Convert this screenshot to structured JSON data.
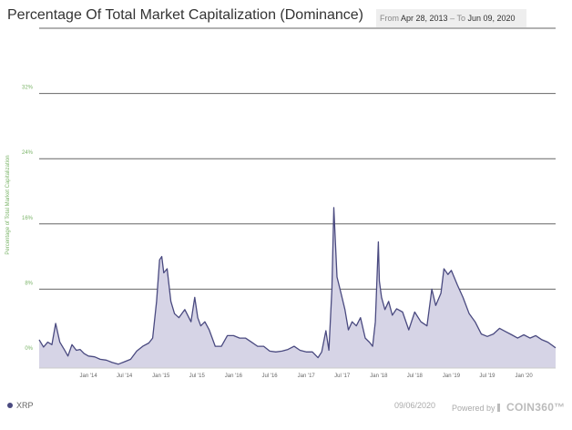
{
  "header": {
    "title": "Percentage Of Total Market Capitalization (Dominance)",
    "range_from_label": "From",
    "range_from": "Apr 28, 2013",
    "range_sep": "–",
    "range_to_label": "To",
    "range_to": "Jun 09, 2020"
  },
  "footer": {
    "legend": "XRP",
    "date": "09/06/2020",
    "powered_by": "Powered by",
    "brand": "COIN360",
    "brand_tm": "™"
  },
  "colors": {
    "line": "#4a4a80",
    "fill": "#d6d4e6",
    "grid": "#666666",
    "axis_label": "#7cb56a",
    "tick_label": "#666666"
  },
  "chart_data": {
    "type": "area",
    "title": "Percentage Of Total Market Capitalization (Dominance)",
    "ylabel": "Percentage of Total Market Capitalization",
    "ylim": [
      0,
      40
    ],
    "yticks": [
      0,
      8,
      16,
      24,
      32
    ],
    "ytick_labels": [
      "0%",
      "8%",
      "16%",
      "24%",
      "32%"
    ],
    "xlim": [
      "2013-04-28",
      "2020-06-09"
    ],
    "xticks": [
      "2014-01-01",
      "2014-07-01",
      "2015-01-01",
      "2015-07-01",
      "2016-01-01",
      "2016-07-01",
      "2017-01-01",
      "2017-07-01",
      "2018-01-01",
      "2018-07-01",
      "2019-01-01",
      "2019-07-01",
      "2020-01-01"
    ],
    "xtick_labels": [
      "Jan '14",
      "Jul '14",
      "Jan '15",
      "Jul '15",
      "Jan '16",
      "Jul '16",
      "Jan '17",
      "Jul '17",
      "Jan '18",
      "Jul '18",
      "Jan '19",
      "Jul '19",
      "Jan '20"
    ],
    "series": [
      {
        "name": "XRP",
        "x": [
          "2013-04-28",
          "2013-05-20",
          "2013-06-10",
          "2013-07-01",
          "2013-07-20",
          "2013-08-10",
          "2013-09-01",
          "2013-09-20",
          "2013-10-10",
          "2013-11-01",
          "2013-11-20",
          "2013-12-10",
          "2014-01-01",
          "2014-02-01",
          "2014-03-01",
          "2014-04-01",
          "2014-05-01",
          "2014-06-01",
          "2014-07-01",
          "2014-08-01",
          "2014-09-01",
          "2014-10-01",
          "2014-11-01",
          "2014-11-20",
          "2014-12-10",
          "2014-12-25",
          "2015-01-05",
          "2015-01-15",
          "2015-02-01",
          "2015-02-20",
          "2015-03-10",
          "2015-04-01",
          "2015-05-01",
          "2015-06-01",
          "2015-06-20",
          "2015-07-05",
          "2015-07-20",
          "2015-08-10",
          "2015-09-01",
          "2015-10-01",
          "2015-11-01",
          "2015-12-01",
          "2016-01-01",
          "2016-02-01",
          "2016-03-01",
          "2016-04-01",
          "2016-05-01",
          "2016-06-01",
          "2016-07-01",
          "2016-08-01",
          "2016-09-01",
          "2016-10-01",
          "2016-11-01",
          "2016-12-01",
          "2017-01-01",
          "2017-02-01",
          "2017-03-01",
          "2017-03-20",
          "2017-04-10",
          "2017-04-25",
          "2017-05-10",
          "2017-05-20",
          "2017-06-05",
          "2017-06-25",
          "2017-07-15",
          "2017-08-01",
          "2017-08-20",
          "2017-09-10",
          "2017-10-01",
          "2017-10-25",
          "2017-11-15",
          "2017-12-01",
          "2017-12-15",
          "2017-12-30",
          "2018-01-04",
          "2018-01-15",
          "2018-02-01",
          "2018-02-20",
          "2018-03-10",
          "2018-04-01",
          "2018-05-01",
          "2018-06-01",
          "2018-07-01",
          "2018-08-01",
          "2018-09-01",
          "2018-09-25",
          "2018-10-15",
          "2018-11-10",
          "2018-11-25",
          "2018-12-15",
          "2019-01-01",
          "2019-02-01",
          "2019-03-01",
          "2019-04-01",
          "2019-05-01",
          "2019-06-01",
          "2019-07-01",
          "2019-08-01",
          "2019-09-01",
          "2019-10-01",
          "2019-11-01",
          "2019-12-01",
          "2020-01-01",
          "2020-02-01",
          "2020-03-01",
          "2020-04-01",
          "2020-05-01",
          "2020-06-09"
        ],
        "values": [
          1.8,
          0.9,
          1.5,
          1.2,
          3.8,
          1.5,
          0.6,
          -0.2,
          1.2,
          0.5,
          0.6,
          0.1,
          -0.2,
          -0.3,
          -0.6,
          -0.7,
          -1.0,
          -1.2,
          -0.9,
          -0.6,
          0.4,
          1.0,
          1.4,
          2.0,
          6.5,
          11.6,
          12.0,
          10.0,
          10.5,
          6.5,
          5.0,
          4.5,
          5.5,
          4.0,
          7.0,
          4.5,
          3.5,
          4.0,
          3.0,
          1.0,
          1.0,
          2.3,
          2.3,
          2.0,
          2.0,
          1.5,
          1.0,
          1.0,
          0.4,
          0.3,
          0.4,
          0.6,
          1.0,
          0.5,
          0.3,
          0.3,
          -0.4,
          0.3,
          2.9,
          0.5,
          8.0,
          18.0,
          9.5,
          7.5,
          5.5,
          3.0,
          4.0,
          3.5,
          4.5,
          2.0,
          1.5,
          1.0,
          4.0,
          13.8,
          9.0,
          7.0,
          5.5,
          6.5,
          4.8,
          5.6,
          5.2,
          3.0,
          5.2,
          4.0,
          3.5,
          8.0,
          6.0,
          7.5,
          10.5,
          9.8,
          10.3,
          8.5,
          7.0,
          5.0,
          4.0,
          2.5,
          2.2,
          2.5,
          3.2,
          2.8,
          2.4,
          2.0,
          2.4,
          2.0,
          2.3,
          1.8,
          1.5,
          0.8
        ]
      }
    ],
    "grid": true,
    "legend_placement": "bottom-left"
  }
}
